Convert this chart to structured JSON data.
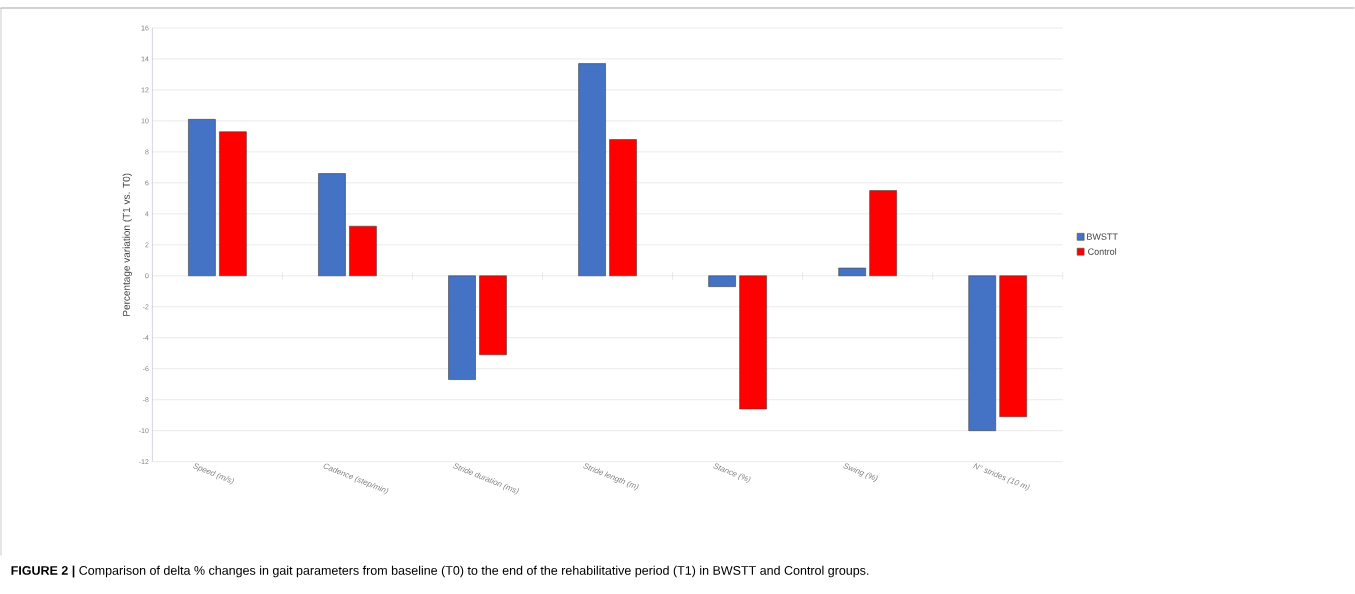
{
  "chart_data": {
    "type": "bar",
    "categories": [
      "Speed (m/s)",
      "Cadence (step/min)",
      "Stride duration (ms)",
      "Stride length (m)",
      "Stance (%)",
      "Swing (%)",
      "N° strides (10 m)"
    ],
    "series": [
      {
        "name": "BWSTT",
        "color": "#4472c4",
        "values": [
          10.1,
          6.6,
          -6.7,
          13.7,
          -0.7,
          0.5,
          -10.0
        ]
      },
      {
        "name": "Control",
        "color": "#ff0000",
        "values": [
          9.3,
          3.2,
          -5.1,
          8.8,
          -8.6,
          5.5,
          -9.1
        ]
      }
    ],
    "ylabel": "Percentage variation (T1 vs. T0)",
    "ylim": [
      -12,
      16
    ],
    "yticks": [
      -12,
      -10,
      -8,
      -6,
      -4,
      -2,
      0,
      2,
      4,
      6,
      8,
      10,
      12,
      14,
      16
    ],
    "grid": "y",
    "legend": "right",
    "annotations": [
      "**FIGURE 2 |** Comparison of delta % changes in gait parameters from baseline (T0) to the end of the rehabilitative period (T1) in BWSTT and Control groups."
    ]
  }
}
